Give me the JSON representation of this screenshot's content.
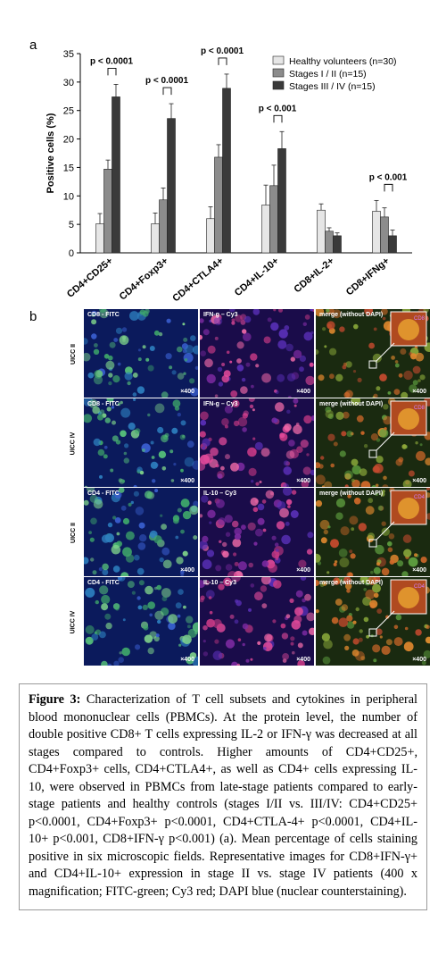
{
  "panel_a_label": "a",
  "panel_b_label": "b",
  "chart_data": {
    "type": "bar",
    "ylabel": "Positive cells (%)",
    "xlabel": "",
    "ylim": [
      0,
      35
    ],
    "yticks": [
      "0",
      "5",
      "10",
      "15",
      "20",
      "25",
      "30",
      "35"
    ],
    "categories": [
      "CD4+CD25+",
      "CD4+Foxp3+",
      "CD4+CTLA4+",
      "CD4+IL-10+",
      "CD8+IL-2+",
      "CD8+IFNg+"
    ],
    "series": [
      {
        "name": "Healthy volunteers (n=30)",
        "values": [
          5.1,
          5.1,
          6.0,
          8.4,
          7.5,
          7.3
        ],
        "errors": [
          1.8,
          1.9,
          2.1,
          3.5,
          1.1,
          1.9
        ],
        "color": "#e6e6e6"
      },
      {
        "name": "Stages I / II (n=15)",
        "values": [
          14.7,
          9.3,
          16.8,
          11.8,
          3.8,
          6.3
        ],
        "errors": [
          1.6,
          2.1,
          2.2,
          3.6,
          0.6,
          1.6
        ],
        "color": "#8c8c8c"
      },
      {
        "name": "Stages III / IV (n=15)",
        "values": [
          27.4,
          23.6,
          28.9,
          18.3,
          3.0,
          3.0
        ],
        "errors": [
          2.2,
          2.6,
          2.5,
          3.0,
          0.5,
          1.0
        ],
        "color": "#3a3a3a"
      }
    ],
    "annotations": [
      "p < 0.0001",
      "p < 0.0001",
      "p < 0.0001",
      "p < 0.001",
      "",
      "p < 0.001"
    ],
    "legend_position": "top-right",
    "grid": false
  },
  "micrographs": {
    "rows": [
      {
        "label": "UICC II",
        "panels": [
          {
            "title": "CD8 - FITC",
            "mag": "×400",
            "tone": "green"
          },
          {
            "title": "IFN-g – Cy3",
            "mag": "×400",
            "tone": "red"
          },
          {
            "title": "merge (without DAPI)",
            "mag": "×400",
            "tone": "merge",
            "inset": "CD8"
          }
        ]
      },
      {
        "label": "UICC IV",
        "panels": [
          {
            "title": "CD8 - FITC",
            "mag": "×400",
            "tone": "green"
          },
          {
            "title": "IFN-g – Cy3",
            "mag": "×400",
            "tone": "red"
          },
          {
            "title": "merge (without DAPI)",
            "mag": "×400",
            "tone": "merge",
            "inset": "CD8"
          }
        ]
      },
      {
        "label": "UICC II",
        "panels": [
          {
            "title": "CD4 - FITC",
            "mag": "×400",
            "tone": "green"
          },
          {
            "title": "IL-10 – Cy3",
            "mag": "×400",
            "tone": "red"
          },
          {
            "title": "merge (without DAPI)",
            "mag": "×400",
            "tone": "merge",
            "inset": "CD4"
          }
        ]
      },
      {
        "label": "UICC IV",
        "panels": [
          {
            "title": "CD4 - FITC",
            "mag": "×400",
            "tone": "green"
          },
          {
            "title": "IL-10 – Cy3",
            "mag": "×400",
            "tone": "red"
          },
          {
            "title": "merge (without DAPI)",
            "mag": "×400",
            "tone": "merge",
            "inset": "CD4"
          }
        ]
      }
    ]
  },
  "caption": {
    "label": "Figure 3:",
    "text": " Characterization of T cell subsets and cytokines in peripheral blood mononuclear cells (PBMCs). At the protein level, the number of double positive CD8+ T cells expressing IL-2 or IFN-γ was decreased at all stages compared to controls. Higher amounts of CD4+CD25+, CD4+Foxp3+ cells, CD4+CTLA4+, as well as CD4+ cells expressing IL-10, were observed in PBMCs from late-stage patients compared to early-stage patients and healthy controls (stages I/II vs. III/IV: CD4+CD25+ p<0.0001, CD4+Foxp3+ p<0.0001, CD4+CTLA-4+ p<0.0001, CD4+IL-10+ p<0.001, CD8+IFN-γ p<0.001) (a). Mean percentage of cells staining positive in six microscopic fields. Representative images for CD8+IFN-γ+ and CD4+IL-10+ expression in stage II vs. stage IV patients (400 x magnification; FITC-green; Cy3 red; DAPI blue (nuclear counterstaining)."
  }
}
